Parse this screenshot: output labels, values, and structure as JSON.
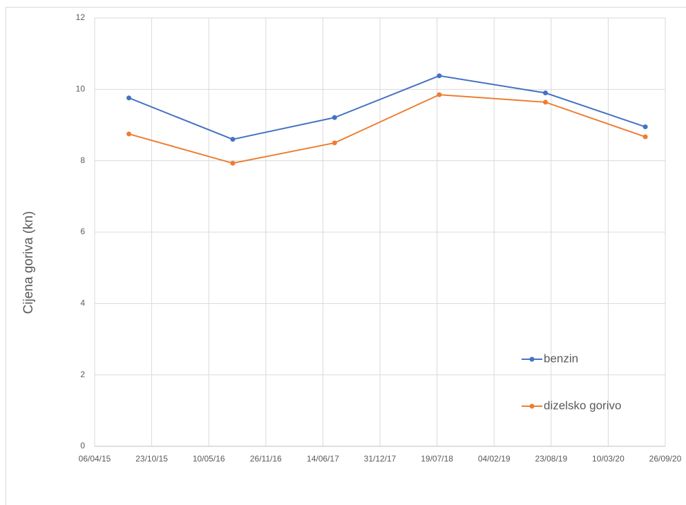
{
  "chart_data": {
    "type": "line",
    "y_label": "Cijena goriva (kn)",
    "x": [
      "04/08/15",
      "02/08/16",
      "25/07/17",
      "27/07/18",
      "03/08/19",
      "18/07/20"
    ],
    "xlim": [
      "06/04/15",
      "26/09/20"
    ],
    "xticks": [
      "06/04/15",
      "23/10/15",
      "10/05/16",
      "26/11/16",
      "14/06/17",
      "31/12/17",
      "19/07/18",
      "04/02/19",
      "23/08/19",
      "10/03/20",
      "26/09/20"
    ],
    "ylim": [
      0,
      12
    ],
    "yticks": [
      0,
      2,
      4,
      6,
      8,
      10,
      12
    ],
    "grid": true,
    "legend": "right",
    "series": [
      {
        "name": "benzin",
        "color": "#4472c4",
        "values": [
          9.76,
          8.6,
          9.21,
          10.38,
          9.9,
          8.95
        ]
      },
      {
        "name": "dizelsko gorivo",
        "color": "#ed7d31",
        "values": [
          8.75,
          7.93,
          8.5,
          9.85,
          9.64,
          8.67
        ]
      }
    ]
  }
}
